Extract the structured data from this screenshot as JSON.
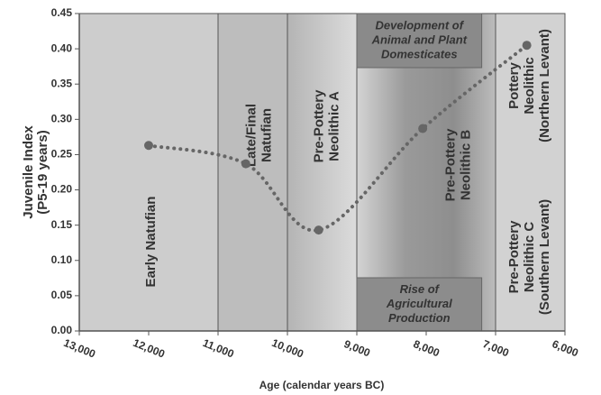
{
  "chart_data": {
    "type": "line",
    "xlabel": "Age (calendar years BC)",
    "ylabel": [
      "Juvenile Index",
      "(P5-19 years)"
    ],
    "x": [
      12000,
      10600,
      9550,
      8050,
      6550
    ],
    "series": [
      {
        "name": "Juvenile Index",
        "color": "#666666",
        "values": [
          0.263,
          0.237,
          0.143,
          0.287,
          0.405
        ]
      }
    ],
    "xlim": [
      13000,
      6000
    ],
    "xticks": [
      {
        "value": 13000,
        "label": "13,000"
      },
      {
        "value": 12000,
        "label": "12,000"
      },
      {
        "value": 11000,
        "label": "11,000"
      },
      {
        "value": 10000,
        "label": "10,000"
      },
      {
        "value": 9000,
        "label": "9,000"
      },
      {
        "value": 8000,
        "label": "8,000"
      },
      {
        "value": 7000,
        "label": "7,000"
      },
      {
        "value": 6000,
        "label": "6,000"
      }
    ],
    "ylim": [
      0,
      0.45
    ],
    "yticks": [
      {
        "value": 0,
        "label": "0.00"
      },
      {
        "value": 0.05,
        "label": "0.05"
      },
      {
        "value": 0.1,
        "label": "0.10"
      },
      {
        "value": 0.15,
        "label": "0.15"
      },
      {
        "value": 0.2,
        "label": "0.20"
      },
      {
        "value": 0.25,
        "label": "0.25"
      },
      {
        "value": 0.3,
        "label": "0.30"
      },
      {
        "value": 0.35,
        "label": "0.35"
      },
      {
        "value": 0.4,
        "label": "0.40"
      },
      {
        "value": 0.45,
        "label": "0.45"
      }
    ],
    "periods": [
      {
        "start": 13000,
        "end": 11000,
        "labels": [
          [
            "Early Natufian"
          ]
        ]
      },
      {
        "start": 11000,
        "end": 10000,
        "labels": [
          [
            "Late/Final",
            "Natufian"
          ]
        ]
      },
      {
        "start": 10000,
        "end": 9000,
        "labels": [
          [
            "Pre-Pottery",
            "Neolithic A"
          ]
        ]
      },
      {
        "start": 9000,
        "end": 7000,
        "labels": [
          [
            "Pre-Pottery",
            "Neolithic B"
          ]
        ]
      },
      {
        "start": 7000,
        "end": 6000,
        "labels": [
          [
            "Pottery",
            "Neolithic",
            "(Northern Levant)"
          ],
          [
            "Pre-Pottery",
            "Neolithic C",
            "(Southern Levant)"
          ]
        ]
      }
    ],
    "annotations": [
      {
        "start": 9000,
        "end": 7200,
        "text": [
          "Development of",
          "Animal and Plant",
          "Domesticates"
        ]
      },
      {
        "start": 9000,
        "end": 7200,
        "text": [
          "Rise of",
          "Agricultural",
          "Production"
        ]
      }
    ]
  }
}
